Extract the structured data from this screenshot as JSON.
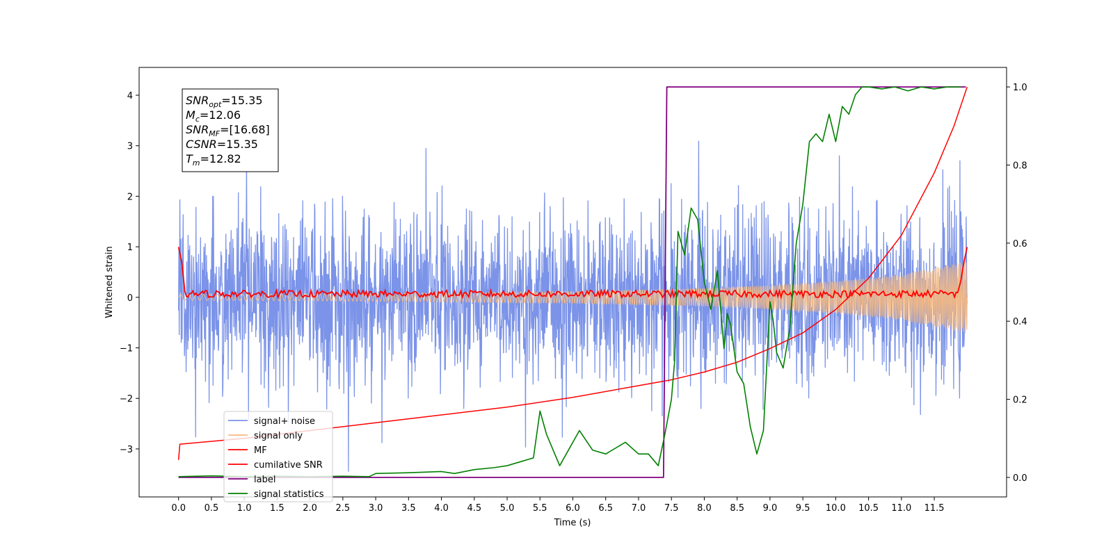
{
  "chart_data": {
    "type": "line",
    "title": "",
    "xlabel": "Time (s)",
    "ylabel": "Whitened strain",
    "xlim": [
      -0.6,
      12.6
    ],
    "ylim": [
      -3.95,
      4.55
    ],
    "y2lim": [
      -0.05,
      1.05
    ],
    "grid": false,
    "legend_position": "lower-left",
    "x_ticks": [
      "0.0",
      "0.5",
      "1.0",
      "1.5",
      "2.0",
      "2.5",
      "3.0",
      "3.5",
      "4.0",
      "4.5",
      "5.0",
      "5.5",
      "6.0",
      "6.5",
      "7.0",
      "7.5",
      "8.0",
      "8.5",
      "9.0",
      "9.5",
      "10.0",
      "10.5",
      "11.0",
      "11.5"
    ],
    "y_ticks": [
      "−3",
      "−2",
      "−1",
      "0",
      "1",
      "2",
      "3",
      "4"
    ],
    "y2_ticks": [
      "0.0",
      "0.2",
      "0.4",
      "0.6",
      "0.8",
      "1.0"
    ],
    "annotation": [
      {
        "var": "SNR",
        "sub": "opt",
        "value": "=15.35"
      },
      {
        "var": "M",
        "sub": "c",
        "value": "=12.06"
      },
      {
        "var": "SNR",
        "sub": "MF",
        "value": "=[16.68]"
      },
      {
        "var": "CSNR",
        "sub": "",
        "value": "=15.35"
      },
      {
        "var": "T",
        "sub": "m",
        "value": "=12.82"
      }
    ],
    "series": [
      {
        "name": "signal+ noise",
        "axis": "left",
        "color": "#7b93e8",
        "noise_std": 0.85,
        "x_range": [
          0,
          12
        ]
      },
      {
        "name": "signal only",
        "axis": "left",
        "color": "#f4b983",
        "envelope": {
          "x": [
            0,
            2,
            4,
            6,
            8,
            9,
            10,
            11,
            11.5,
            12
          ],
          "amp": [
            0.06,
            0.07,
            0.09,
            0.12,
            0.18,
            0.24,
            0.32,
            0.45,
            0.58,
            0.72
          ]
        }
      },
      {
        "name": "MF",
        "axis": "right",
        "color": "#ff0000",
        "x": [
          0,
          0.05,
          0.1,
          11.85,
          11.9,
          11.95,
          12
        ],
        "y": [
          0.59,
          0.55,
          0.47,
          0.47,
          0.5,
          0.55,
          0.59
        ]
      },
      {
        "name": "cumilative SNR",
        "axis": "right",
        "color": "#ff0000",
        "x": [
          0,
          0.02,
          1,
          2,
          3,
          4,
          5,
          6,
          7,
          7.5,
          8,
          8.5,
          9,
          9.5,
          10,
          10.5,
          11,
          11.5,
          11.8,
          12
        ],
        "y": [
          0.045,
          0.085,
          0.1,
          0.12,
          0.14,
          0.16,
          0.18,
          0.205,
          0.235,
          0.25,
          0.27,
          0.295,
          0.33,
          0.37,
          0.43,
          0.51,
          0.62,
          0.78,
          0.9,
          1.0
        ]
      },
      {
        "name": "label",
        "axis": "right",
        "color": "#800080",
        "x": [
          0,
          7.38,
          7.43,
          7.45,
          11.98
        ],
        "y": [
          0,
          0,
          1,
          1,
          1
        ]
      },
      {
        "name": "signal statistics",
        "axis": "right",
        "color": "#008000",
        "x": [
          0,
          0.5,
          1,
          1.5,
          2,
          2.5,
          2.9,
          3.0,
          3.5,
          4.0,
          4.2,
          4.5,
          4.8,
          5.0,
          5.2,
          5.4,
          5.5,
          5.6,
          5.8,
          5.9,
          6.1,
          6.3,
          6.5,
          6.8,
          7.0,
          7.15,
          7.3,
          7.4,
          7.5,
          7.55,
          7.6,
          7.7,
          7.8,
          7.9,
          8.0,
          8.1,
          8.2,
          8.3,
          8.35,
          8.4,
          8.5,
          8.6,
          8.7,
          8.8,
          8.9,
          9.0,
          9.05,
          9.1,
          9.2,
          9.3,
          9.4,
          9.5,
          9.6,
          9.7,
          9.8,
          9.9,
          10.0,
          10.1,
          10.2,
          10.3,
          10.4,
          10.5,
          10.7,
          10.9,
          11.1,
          11.3,
          11.5,
          11.7,
          11.9
        ],
        "y": [
          0.002,
          0.004,
          0.002,
          0.003,
          0.002,
          0.003,
          0.002,
          0.01,
          0.012,
          0.015,
          0.01,
          0.02,
          0.025,
          0.03,
          0.04,
          0.05,
          0.17,
          0.11,
          0.03,
          0.06,
          0.12,
          0.07,
          0.06,
          0.09,
          0.06,
          0.06,
          0.03,
          0.11,
          0.2,
          0.3,
          0.63,
          0.57,
          0.69,
          0.66,
          0.5,
          0.43,
          0.53,
          0.33,
          0.42,
          0.39,
          0.27,
          0.24,
          0.13,
          0.06,
          0.12,
          0.45,
          0.4,
          0.32,
          0.28,
          0.38,
          0.6,
          0.7,
          0.86,
          0.88,
          0.86,
          0.93,
          0.86,
          0.95,
          0.93,
          0.98,
          1.0,
          1.0,
          0.995,
          1.0,
          0.99,
          1.0,
          0.995,
          1.0,
          1.0
        ]
      }
    ]
  }
}
